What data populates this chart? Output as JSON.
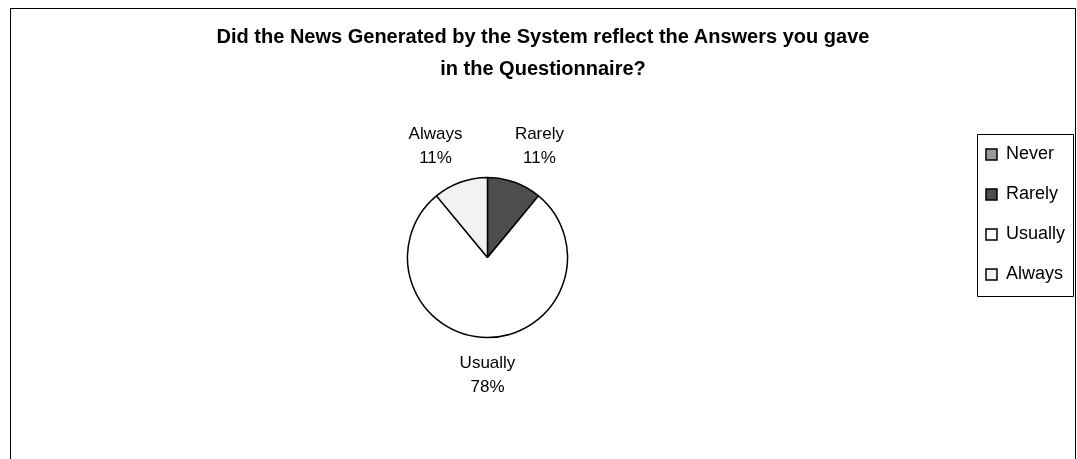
{
  "chart_data": {
    "type": "pie",
    "title": "Did the News Generated by the System reflect the Answers you gave in the Questionnaire?",
    "categories": [
      "Never",
      "Rarely",
      "Usually",
      "Always"
    ],
    "values": [
      0,
      11,
      78,
      11
    ],
    "colors": [
      "#999999",
      "#4d4d4d",
      "#ffffff",
      "#f2f2f2"
    ],
    "value_labels": [
      null,
      "11%",
      "78%",
      "11%"
    ],
    "legend": "right"
  }
}
